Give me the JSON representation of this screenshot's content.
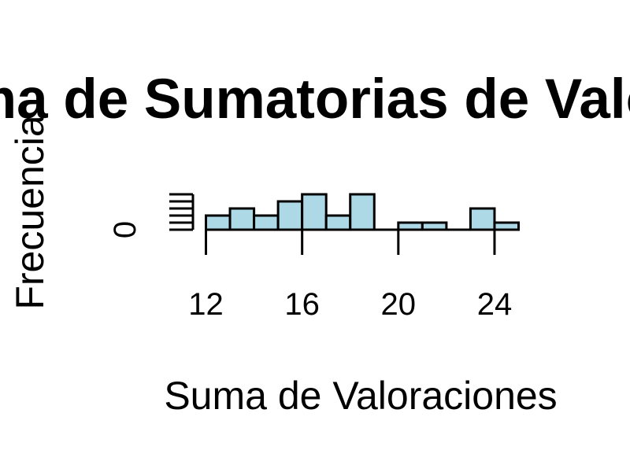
{
  "chart_data": {
    "type": "bar",
    "title": "Histograma de Sumatorias de Valoraciones",
    "xlabel": "Suma de Valoraciones",
    "ylabel": "Frecuencia",
    "x_ticks": [
      "12",
      "16",
      "20",
      "24"
    ],
    "y_ticks": [
      "0"
    ],
    "bins": [
      {
        "start": 12,
        "end": 13,
        "count": 2
      },
      {
        "start": 13,
        "end": 14,
        "count": 3
      },
      {
        "start": 14,
        "end": 15,
        "count": 2
      },
      {
        "start": 15,
        "end": 16,
        "count": 4
      },
      {
        "start": 16,
        "end": 17,
        "count": 5
      },
      {
        "start": 17,
        "end": 18,
        "count": 2
      },
      {
        "start": 18,
        "end": 19,
        "count": 5
      },
      {
        "start": 19,
        "end": 20,
        "count": 0
      },
      {
        "start": 20,
        "end": 21,
        "count": 1
      },
      {
        "start": 21,
        "end": 22,
        "count": 1
      },
      {
        "start": 22,
        "end": 23,
        "count": 0
      },
      {
        "start": 23,
        "end": 24,
        "count": 3
      },
      {
        "start": 24,
        "end": 25,
        "count": 1
      }
    ],
    "xlim": [
      12,
      25
    ],
    "ylim": [
      0,
      5
    ],
    "bar_color": "#add8e6",
    "grid": false
  }
}
